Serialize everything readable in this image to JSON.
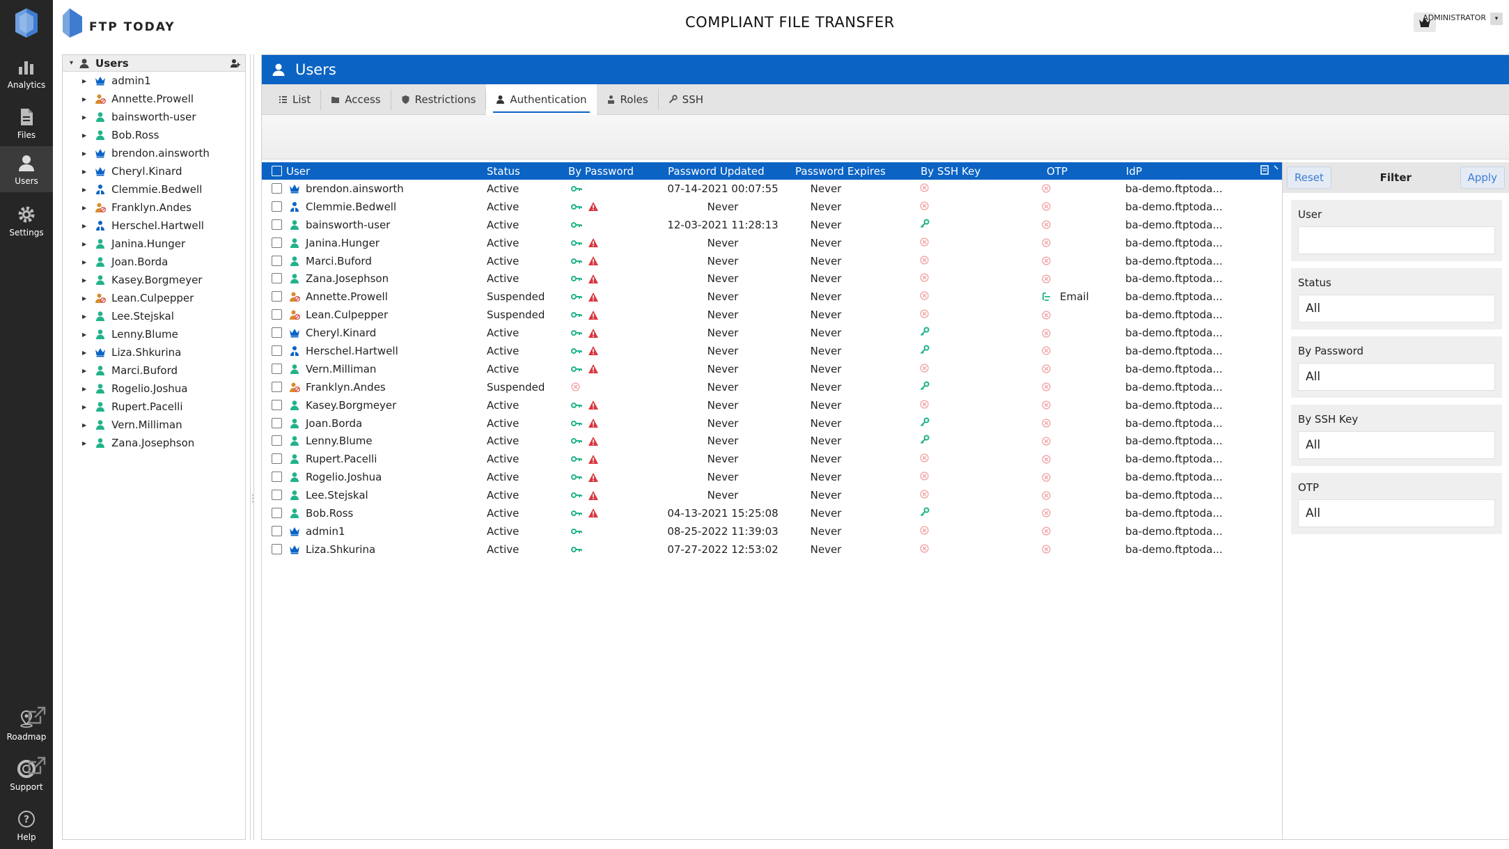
{
  "app": {
    "brand": "FTP TODAY",
    "title": "COMPLIANT FILE TRANSFER",
    "user_label": "ADMINISTRATOR"
  },
  "nav": [
    {
      "label": "Analytics",
      "icon": "analytics-icon"
    },
    {
      "label": "Files",
      "icon": "files-icon"
    },
    {
      "label": "Users",
      "icon": "users-icon",
      "active": true
    },
    {
      "label": "Settings",
      "icon": "gear-icon"
    },
    {
      "label": "Roadmap",
      "icon": "roadmap-icon"
    },
    {
      "label": "Support",
      "icon": "support-icon"
    },
    {
      "label": "Help",
      "icon": "help-icon"
    }
  ],
  "tree": {
    "root_label": "Users",
    "items": [
      {
        "name": "admin1",
        "kind": "crown"
      },
      {
        "name": "Annette.Prowell",
        "kind": "suspended"
      },
      {
        "name": "bainsworth-user",
        "kind": "user"
      },
      {
        "name": "Bob.Ross",
        "kind": "user"
      },
      {
        "name": "brendon.ainsworth",
        "kind": "crown"
      },
      {
        "name": "Cheryl.Kinard",
        "kind": "crown"
      },
      {
        "name": "Clemmie.Bedwell",
        "kind": "group"
      },
      {
        "name": "Franklyn.Andes",
        "kind": "suspended"
      },
      {
        "name": "Herschel.Hartwell",
        "kind": "group"
      },
      {
        "name": "Janina.Hunger",
        "kind": "user"
      },
      {
        "name": "Joan.Borda",
        "kind": "user"
      },
      {
        "name": "Kasey.Borgmeyer",
        "kind": "user"
      },
      {
        "name": "Lean.Culpepper",
        "kind": "suspended"
      },
      {
        "name": "Lee.Stejskal",
        "kind": "user"
      },
      {
        "name": "Lenny.Blume",
        "kind": "user"
      },
      {
        "name": "Liza.Shkurina",
        "kind": "crown"
      },
      {
        "name": "Marci.Buford",
        "kind": "user"
      },
      {
        "name": "Rogelio.Joshua",
        "kind": "user"
      },
      {
        "name": "Rupert.Pacelli",
        "kind": "user"
      },
      {
        "name": "Vern.Milliman",
        "kind": "user"
      },
      {
        "name": "Zana.Josephson",
        "kind": "user"
      }
    ]
  },
  "panel": {
    "title": "Users",
    "tabs": [
      {
        "label": "List",
        "icon": "list-icon"
      },
      {
        "label": "Access",
        "icon": "folder-icon"
      },
      {
        "label": "Restrictions",
        "icon": "shield-icon"
      },
      {
        "label": "Authentication",
        "icon": "auth-user-icon",
        "active": true
      },
      {
        "label": "Roles",
        "icon": "roles-icon"
      },
      {
        "label": "SSH",
        "icon": "wrench-icon"
      }
    ]
  },
  "grid": {
    "columns": [
      "User",
      "Status",
      "By Password",
      "Password Updated",
      "Password Expires",
      "By SSH Key",
      "OTP",
      "IdP"
    ],
    "rows": [
      {
        "user": "brendon.ainsworth",
        "kind": "crown",
        "status": "Active",
        "pw": "key",
        "warn": false,
        "updated": "07-14-2021 00:07:55",
        "expires": "Never",
        "ssh": "none",
        "otp": "none",
        "otp_label": "",
        "idp": "ba-demo.ftptoda..."
      },
      {
        "user": "Clemmie.Bedwell",
        "kind": "group",
        "status": "Active",
        "pw": "key",
        "warn": true,
        "updated": "Never",
        "expires": "Never",
        "ssh": "none",
        "otp": "none",
        "otp_label": "",
        "idp": "ba-demo.ftptoda..."
      },
      {
        "user": "bainsworth-user",
        "kind": "user",
        "status": "Active",
        "pw": "key",
        "warn": false,
        "updated": "12-03-2021 11:28:13",
        "expires": "Never",
        "ssh": "key",
        "otp": "none",
        "otp_label": "",
        "idp": "ba-demo.ftptoda..."
      },
      {
        "user": "Janina.Hunger",
        "kind": "user",
        "status": "Active",
        "pw": "key",
        "warn": true,
        "updated": "Never",
        "expires": "Never",
        "ssh": "none",
        "otp": "none",
        "otp_label": "",
        "idp": "ba-demo.ftptoda..."
      },
      {
        "user": "Marci.Buford",
        "kind": "user",
        "status": "Active",
        "pw": "key",
        "warn": true,
        "updated": "Never",
        "expires": "Never",
        "ssh": "none",
        "otp": "none",
        "otp_label": "",
        "idp": "ba-demo.ftptoda..."
      },
      {
        "user": "Zana.Josephson",
        "kind": "user",
        "status": "Active",
        "pw": "key",
        "warn": true,
        "updated": "Never",
        "expires": "Never",
        "ssh": "none",
        "otp": "none",
        "otp_label": "",
        "idp": "ba-demo.ftptoda..."
      },
      {
        "user": "Annette.Prowell",
        "kind": "suspended",
        "status": "Suspended",
        "pw": "key",
        "warn": true,
        "updated": "Never",
        "expires": "Never",
        "ssh": "none",
        "otp": "email",
        "otp_label": "Email",
        "idp": "ba-demo.ftptoda..."
      },
      {
        "user": "Lean.Culpepper",
        "kind": "suspended",
        "status": "Suspended",
        "pw": "key",
        "warn": true,
        "updated": "Never",
        "expires": "Never",
        "ssh": "none",
        "otp": "none",
        "otp_label": "",
        "idp": "ba-demo.ftptoda..."
      },
      {
        "user": "Cheryl.Kinard",
        "kind": "crown",
        "status": "Active",
        "pw": "key",
        "warn": true,
        "updated": "Never",
        "expires": "Never",
        "ssh": "key",
        "otp": "none",
        "otp_label": "",
        "idp": "ba-demo.ftptoda..."
      },
      {
        "user": "Herschel.Hartwell",
        "kind": "group",
        "status": "Active",
        "pw": "key",
        "warn": true,
        "updated": "Never",
        "expires": "Never",
        "ssh": "key",
        "otp": "none",
        "otp_label": "",
        "idp": "ba-demo.ftptoda..."
      },
      {
        "user": "Vern.Milliman",
        "kind": "user",
        "status": "Active",
        "pw": "key",
        "warn": true,
        "updated": "Never",
        "expires": "Never",
        "ssh": "none",
        "otp": "none",
        "otp_label": "",
        "idp": "ba-demo.ftptoda..."
      },
      {
        "user": "Franklyn.Andes",
        "kind": "suspended",
        "status": "Suspended",
        "pw": "none",
        "warn": false,
        "updated": "Never",
        "expires": "Never",
        "ssh": "key",
        "otp": "none",
        "otp_label": "",
        "idp": "ba-demo.ftptoda..."
      },
      {
        "user": "Kasey.Borgmeyer",
        "kind": "user",
        "status": "Active",
        "pw": "key",
        "warn": true,
        "updated": "Never",
        "expires": "Never",
        "ssh": "none",
        "otp": "none",
        "otp_label": "",
        "idp": "ba-demo.ftptoda..."
      },
      {
        "user": "Joan.Borda",
        "kind": "user",
        "status": "Active",
        "pw": "key",
        "warn": true,
        "updated": "Never",
        "expires": "Never",
        "ssh": "key",
        "otp": "none",
        "otp_label": "",
        "idp": "ba-demo.ftptoda..."
      },
      {
        "user": "Lenny.Blume",
        "kind": "user",
        "status": "Active",
        "pw": "key",
        "warn": true,
        "updated": "Never",
        "expires": "Never",
        "ssh": "key",
        "otp": "none",
        "otp_label": "",
        "idp": "ba-demo.ftptoda..."
      },
      {
        "user": "Rupert.Pacelli",
        "kind": "user",
        "status": "Active",
        "pw": "key",
        "warn": true,
        "updated": "Never",
        "expires": "Never",
        "ssh": "none",
        "otp": "none",
        "otp_label": "",
        "idp": "ba-demo.ftptoda..."
      },
      {
        "user": "Rogelio.Joshua",
        "kind": "user",
        "status": "Active",
        "pw": "key",
        "warn": true,
        "updated": "Never",
        "expires": "Never",
        "ssh": "none",
        "otp": "none",
        "otp_label": "",
        "idp": "ba-demo.ftptoda..."
      },
      {
        "user": "Lee.Stejskal",
        "kind": "user",
        "status": "Active",
        "pw": "key",
        "warn": true,
        "updated": "Never",
        "expires": "Never",
        "ssh": "none",
        "otp": "none",
        "otp_label": "",
        "idp": "ba-demo.ftptoda..."
      },
      {
        "user": "Bob.Ross",
        "kind": "user",
        "status": "Active",
        "pw": "key",
        "warn": true,
        "updated": "04-13-2021 15:25:08",
        "expires": "Never",
        "ssh": "key",
        "otp": "none",
        "otp_label": "",
        "idp": "ba-demo.ftptoda..."
      },
      {
        "user": "admin1",
        "kind": "crown",
        "status": "Active",
        "pw": "key",
        "warn": false,
        "updated": "08-25-2022 11:39:03",
        "expires": "Never",
        "ssh": "none",
        "otp": "none",
        "otp_label": "",
        "idp": "ba-demo.ftptoda..."
      },
      {
        "user": "Liza.Shkurina",
        "kind": "crown",
        "status": "Active",
        "pw": "key",
        "warn": false,
        "updated": "07-27-2022 12:53:02",
        "expires": "Never",
        "ssh": "none",
        "otp": "none",
        "otp_label": "",
        "idp": "ba-demo.ftptoda..."
      }
    ]
  },
  "filter": {
    "reset_label": "Reset",
    "title": "Filter",
    "apply_label": "Apply",
    "fields": [
      {
        "label": "User",
        "value": ""
      },
      {
        "label": "Status",
        "value": "All"
      },
      {
        "label": "By Password",
        "value": "All"
      },
      {
        "label": "By SSH Key",
        "value": "All"
      },
      {
        "label": "OTP",
        "value": "All"
      }
    ]
  },
  "colors": {
    "primary": "#0b63c4",
    "nav_bg": "#262626",
    "key_green": "#20b38a",
    "warn_red": "#d9363e",
    "none_red": "#f08a8a",
    "user_green": "#20b38a",
    "crown_blue": "#0b63c4",
    "suspended_red": "#d9534f"
  }
}
